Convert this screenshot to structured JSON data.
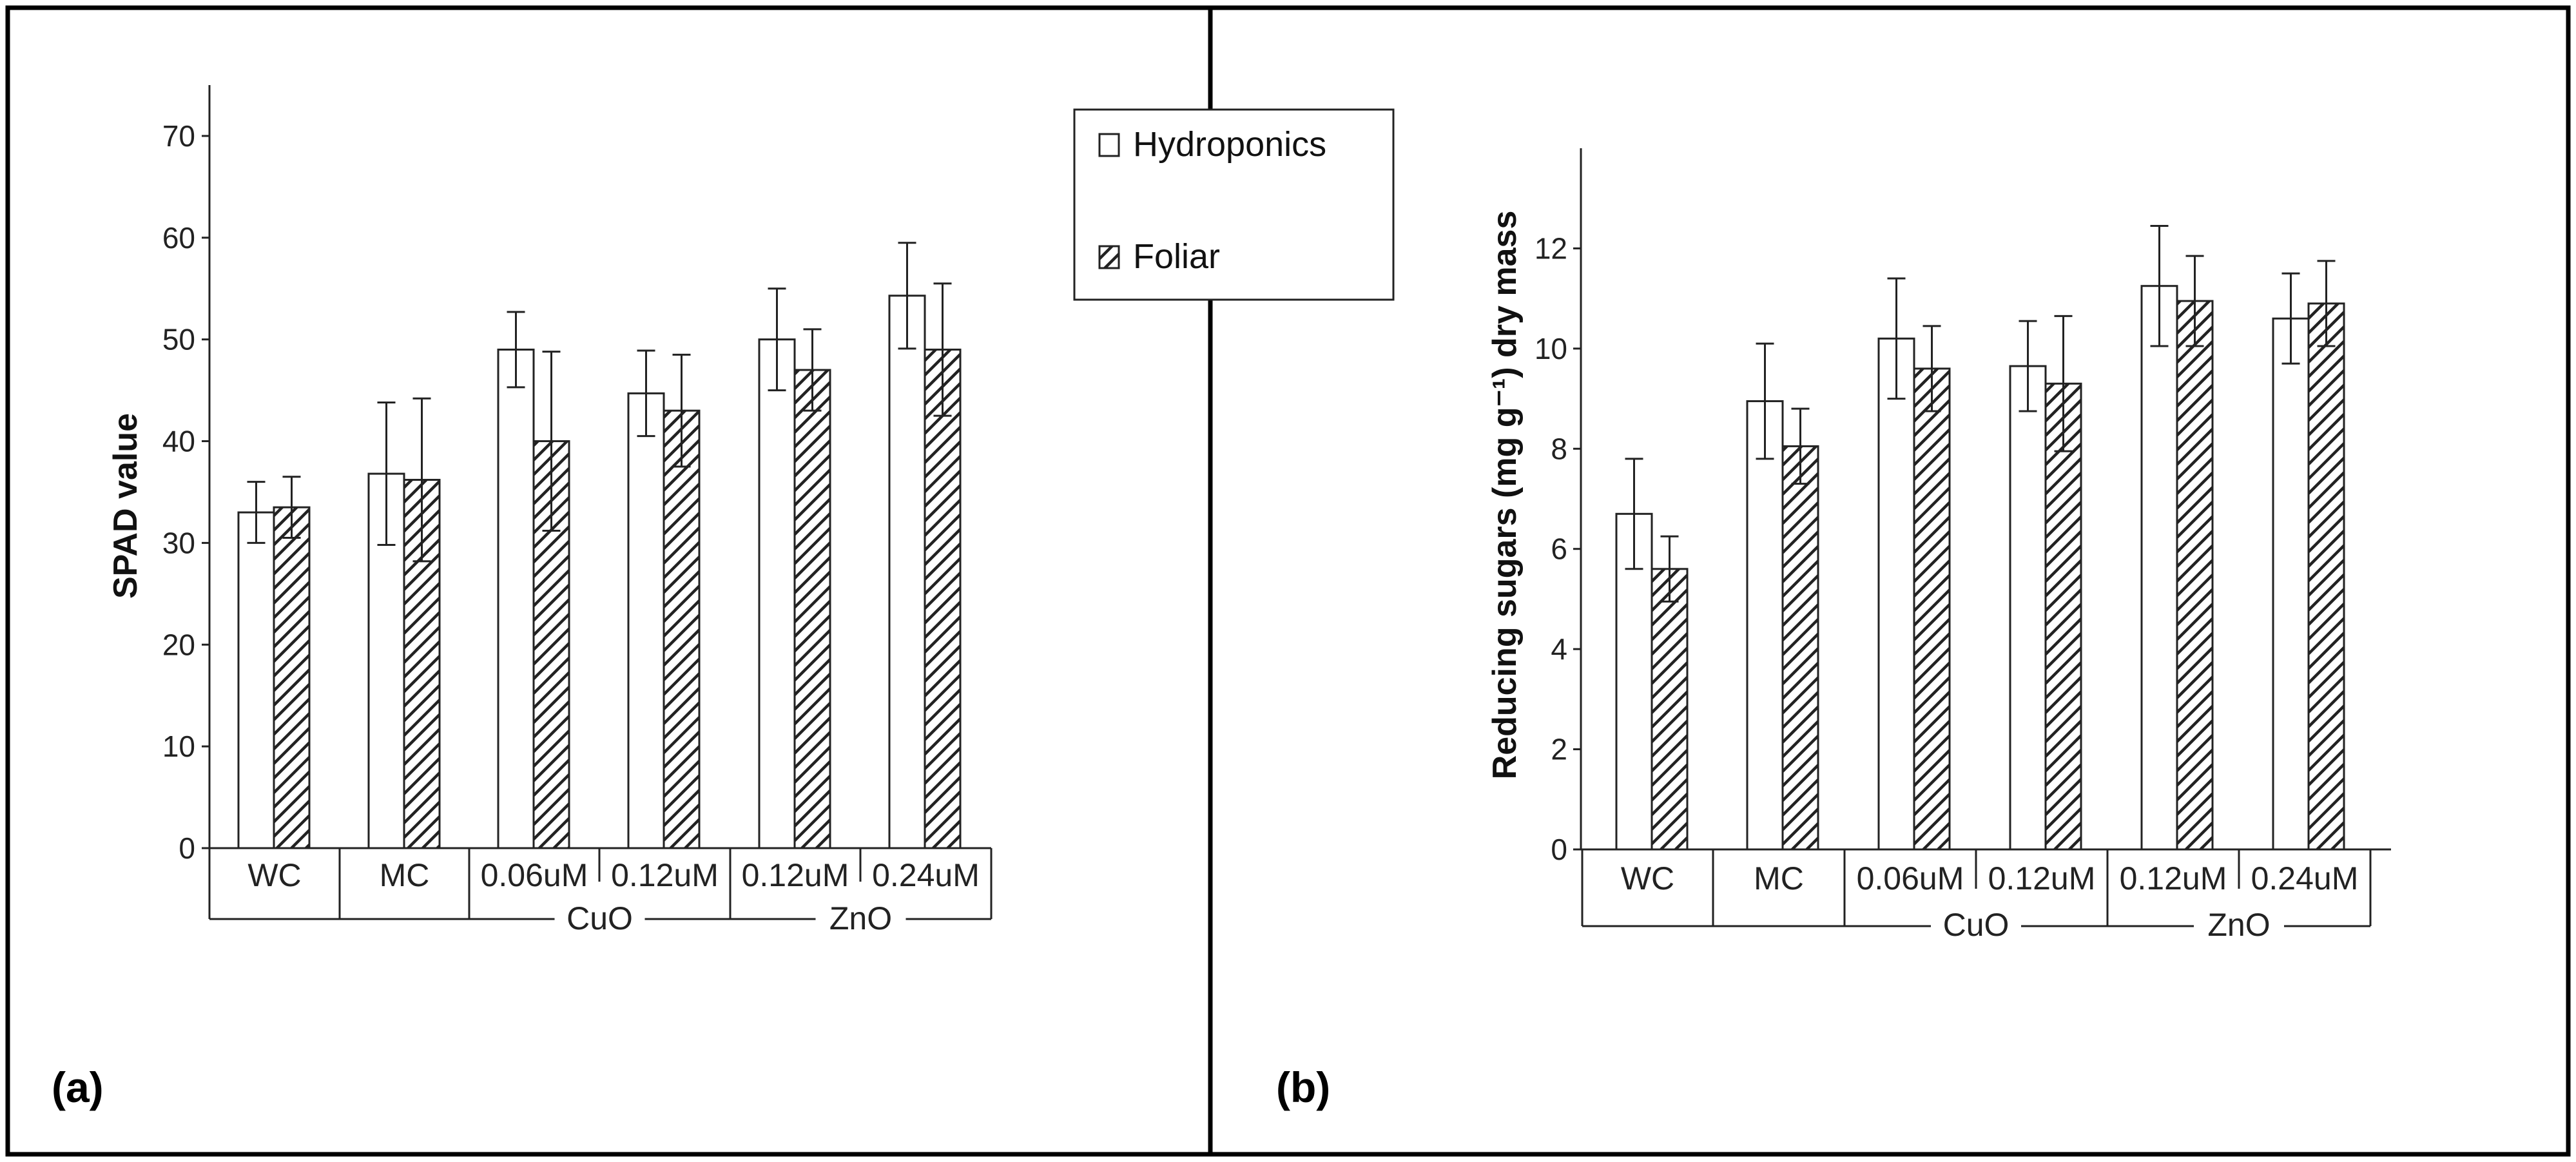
{
  "legend": {
    "items": [
      "Hydroponics",
      "Foliar"
    ]
  },
  "chart_data": [
    {
      "type": "bar",
      "panel_label": "(a)",
      "ylabel": "SPAD value",
      "xlabel": "",
      "ylim": [
        0,
        75
      ],
      "yticks": [
        "0",
        "10",
        "20",
        "30",
        "40",
        "50",
        "60",
        "70"
      ],
      "categories": [
        "WC",
        "MC",
        "0.06uM",
        "0.12uM",
        "0.12uM",
        "0.24uM"
      ],
      "groups": [
        {
          "label": "CuO",
          "categories": [
            2,
            3
          ]
        },
        {
          "label": "ZnO",
          "categories": [
            4,
            5
          ]
        }
      ],
      "series": [
        {
          "name": "Hydroponics",
          "values": [
            33,
            36.8,
            49,
            44.7,
            50,
            54.3
          ],
          "errors": [
            3.0,
            7.0,
            3.7,
            4.2,
            5.0,
            5.2
          ]
        },
        {
          "name": "Foliar",
          "values": [
            33.5,
            36.2,
            40,
            43,
            47,
            49
          ],
          "errors": [
            3.0,
            8.0,
            8.8,
            5.5,
            4.0,
            6.5
          ]
        }
      ]
    },
    {
      "type": "bar",
      "panel_label": "(b)",
      "ylabel": "Reducing sugars (mg g⁻¹) dry mass",
      "xlabel": "",
      "ylim": [
        0,
        14
      ],
      "yticks": [
        "0",
        "2",
        "4",
        "6",
        "8",
        "10",
        "12"
      ],
      "categories": [
        "WC",
        "MC",
        "0.06uM",
        "0.12uM",
        "0.12uM",
        "0.24uM"
      ],
      "groups": [
        {
          "label": "CuO",
          "categories": [
            2,
            3
          ]
        },
        {
          "label": "ZnO",
          "categories": [
            4,
            5
          ]
        }
      ],
      "series": [
        {
          "name": "Hydroponics",
          "values": [
            6.7,
            8.95,
            10.2,
            9.65,
            11.25,
            10.6
          ],
          "errors": [
            1.1,
            1.15,
            1.2,
            0.9,
            1.2,
            0.9
          ]
        },
        {
          "name": "Foliar",
          "values": [
            5.6,
            8.05,
            9.6,
            9.3,
            10.95,
            10.9
          ],
          "errors": [
            0.65,
            0.75,
            0.85,
            1.35,
            0.9,
            0.85
          ]
        }
      ]
    }
  ]
}
